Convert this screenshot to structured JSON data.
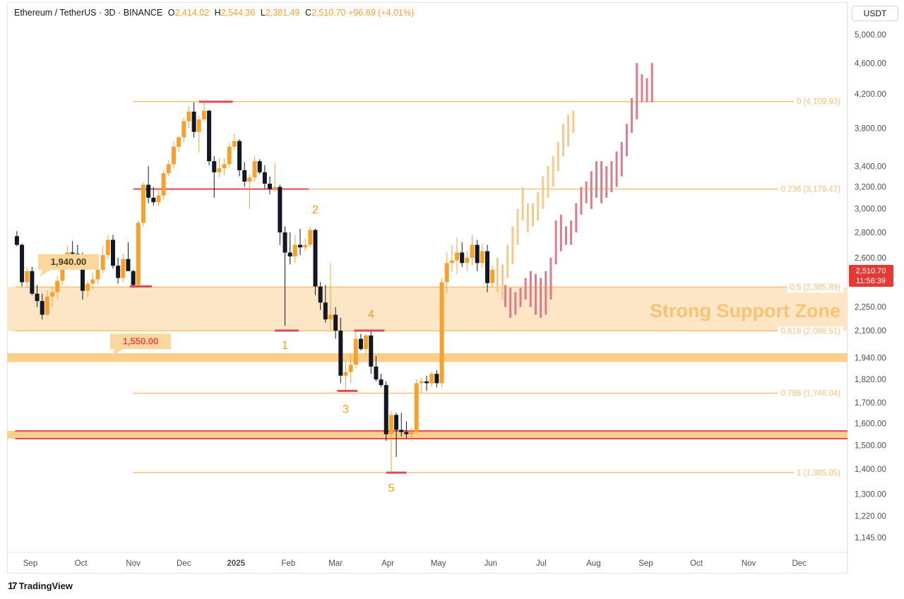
{
  "header": {
    "title": "Ethereum / TetherUS · 3D · BINANCE",
    "open_label": "O",
    "open": "2,414.02",
    "high_label": "H",
    "high": "2,544.36",
    "low_label": "L",
    "low": "2,381.49",
    "close_label": "C",
    "close": "2,510.70",
    "change": "+96.69 (+4.01%)",
    "currency": "USDT"
  },
  "price_tag": {
    "price": "2,510.70",
    "countdown": "11:56:39"
  },
  "brand": {
    "logo": "17",
    "name": "TradingView"
  },
  "annotations": {
    "zone_label": "Strong Support Zone",
    "level_1940": "1,940.00",
    "level_1550": "1,550.00",
    "waves": [
      "1",
      "2",
      "3",
      "4",
      "5"
    ]
  },
  "colors": {
    "up": "#f7a12d",
    "down": "#131722",
    "fib": "#f6c177",
    "zone_fill": "#fde6c6",
    "band_fill": "#fbcf8a",
    "red_line": "#e0495a",
    "proj_orange": "#f7c98a",
    "proj_red": "#dc7b8a",
    "price_tag_bg": "#e53935"
  },
  "chart_data": {
    "type": "candlestick",
    "symbol": "Ethereum / TetherUS",
    "interval": "3D",
    "exchange": "BINANCE",
    "y_axis": {
      "scale": "log",
      "range": [
        1100,
        5300
      ],
      "ticks": [
        "5,000.00",
        "4,600.00",
        "4,200.00",
        "3,800.00",
        "3,400.00",
        "3,200.00",
        "3,000.00",
        "2,800.00",
        "2,600.00",
        "2,250.00",
        "2,100.00",
        "1,940.00",
        "1,820.00",
        "1,700.00",
        "1,600.00",
        "1,500.00",
        "1,400.00",
        "1,300.00",
        "1,220.00",
        "1,145.00"
      ]
    },
    "x_axis": {
      "range": [
        "2024-08-23",
        "2025-12-31"
      ],
      "ticks": [
        {
          "date": "2024-09-01",
          "label": "Sep"
        },
        {
          "date": "2024-10-01",
          "label": "Oct"
        },
        {
          "date": "2024-11-01",
          "label": "Nov"
        },
        {
          "date": "2024-12-01",
          "label": "Dec"
        },
        {
          "date": "2025-01-01",
          "label": "2025"
        },
        {
          "date": "2025-02-01",
          "label": "Feb"
        },
        {
          "date": "2025-03-01",
          "label": "Mar"
        },
        {
          "date": "2025-04-01",
          "label": "Apr"
        },
        {
          "date": "2025-05-01",
          "label": "May"
        },
        {
          "date": "2025-06-01",
          "label": "Jun"
        },
        {
          "date": "2025-07-01",
          "label": "Jul"
        },
        {
          "date": "2025-08-01",
          "label": "Aug"
        },
        {
          "date": "2025-09-01",
          "label": "Sep"
        },
        {
          "date": "2025-10-01",
          "label": "Oct"
        },
        {
          "date": "2025-11-01",
          "label": "Nov"
        },
        {
          "date": "2025-12-01",
          "label": "Dec"
        }
      ]
    },
    "fib_levels": [
      {
        "ratio": "0",
        "value": 4109.93,
        "label": "0 (4,109.93)"
      },
      {
        "ratio": "0.236",
        "value": 3179.47,
        "label": "0.236 (3,179.47)"
      },
      {
        "ratio": "0.5",
        "value": 2385.89,
        "label": "0.5 (2,385.89)"
      },
      {
        "ratio": "0.618",
        "value": 2098.51,
        "label": "0.618 (2,098.51)"
      },
      {
        "ratio": "0.786",
        "value": 1748.04,
        "label": "0.786 (1,748.04)"
      },
      {
        "ratio": "1",
        "value": 1385.05,
        "label": "1 (1,385.05)"
      }
    ],
    "support_zone": [
      2098.51,
      2385.89
    ],
    "bands": [
      [
        1915,
        1965
      ],
      [
        1530,
        1565
      ]
    ],
    "candles": [
      [
        "2024-08-24",
        2770,
        2810,
        2690,
        2700
      ],
      [
        "2024-08-27",
        2700,
        2710,
        2390,
        2420
      ],
      [
        "2024-08-30",
        2420,
        2530,
        2380,
        2500
      ],
      [
        "2024-09-02",
        2500,
        2530,
        2330,
        2340
      ],
      [
        "2024-09-05",
        2340,
        2400,
        2250,
        2290
      ],
      [
        "2024-09-08",
        2290,
        2340,
        2170,
        2200
      ],
      [
        "2024-09-11",
        2200,
        2360,
        2190,
        2320
      ],
      [
        "2024-09-14",
        2320,
        2390,
        2250,
        2350
      ],
      [
        "2024-09-17",
        2350,
        2460,
        2300,
        2430
      ],
      [
        "2024-09-20",
        2430,
        2620,
        2400,
        2570
      ],
      [
        "2024-09-23",
        2570,
        2690,
        2530,
        2640
      ],
      [
        "2024-09-26",
        2640,
        2730,
        2580,
        2630
      ],
      [
        "2024-09-29",
        2630,
        2700,
        2560,
        2590
      ],
      [
        "2024-10-02",
        2590,
        2640,
        2300,
        2360
      ],
      [
        "2024-10-05",
        2360,
        2430,
        2320,
        2410
      ],
      [
        "2024-10-08",
        2410,
        2490,
        2370,
        2440
      ],
      [
        "2024-10-11",
        2440,
        2540,
        2410,
        2510
      ],
      [
        "2024-10-14",
        2510,
        2690,
        2480,
        2620
      ],
      [
        "2024-10-17",
        2620,
        2780,
        2590,
        2740
      ],
      [
        "2024-10-20",
        2740,
        2780,
        2520,
        2540
      ],
      [
        "2024-10-23",
        2540,
        2600,
        2410,
        2450
      ],
      [
        "2024-10-26",
        2450,
        2630,
        2420,
        2590
      ],
      [
        "2024-10-29",
        2590,
        2720,
        2500,
        2500
      ],
      [
        "2024-11-01",
        2500,
        2510,
        2380,
        2400
      ],
      [
        "2024-11-04",
        2400,
        2900,
        2380,
        2880
      ],
      [
        "2024-11-07",
        2880,
        3240,
        2850,
        3220
      ],
      [
        "2024-11-10",
        3220,
        3400,
        3050,
        3100
      ],
      [
        "2024-11-13",
        3100,
        3200,
        3030,
        3060
      ],
      [
        "2024-11-16",
        3060,
        3180,
        3020,
        3120
      ],
      [
        "2024-11-19",
        3120,
        3360,
        3080,
        3330
      ],
      [
        "2024-11-22",
        3330,
        3460,
        3300,
        3420
      ],
      [
        "2024-11-25",
        3420,
        3660,
        3380,
        3600
      ],
      [
        "2024-11-28",
        3600,
        3720,
        3550,
        3700
      ],
      [
        "2024-12-01",
        3700,
        3920,
        3650,
        3880
      ],
      [
        "2024-12-04",
        3880,
        4050,
        3800,
        3990
      ],
      [
        "2024-12-07",
        3990,
        4100,
        3700,
        3760
      ],
      [
        "2024-12-10",
        3760,
        3940,
        3540,
        3900
      ],
      [
        "2024-12-13",
        3900,
        4107,
        3880,
        4000
      ],
      [
        "2024-12-16",
        4000,
        4010,
        3410,
        3450
      ],
      [
        "2024-12-19",
        3450,
        3500,
        3100,
        3340
      ],
      [
        "2024-12-22",
        3340,
        3480,
        3290,
        3380
      ],
      [
        "2024-12-25",
        3380,
        3480,
        3310,
        3420
      ],
      [
        "2024-12-28",
        3420,
        3640,
        3390,
        3600
      ],
      [
        "2024-12-31",
        3600,
        3740,
        3560,
        3660
      ],
      [
        "2025-01-03",
        3660,
        3680,
        3300,
        3360
      ],
      [
        "2025-01-06",
        3360,
        3440,
        3200,
        3250
      ],
      [
        "2025-01-09",
        3250,
        3320,
        3000,
        3290
      ],
      [
        "2025-01-12",
        3290,
        3500,
        3250,
        3450
      ],
      [
        "2025-01-15",
        3450,
        3470,
        3320,
        3340
      ],
      [
        "2025-01-18",
        3340,
        3410,
        3180,
        3230
      ],
      [
        "2025-01-21",
        3230,
        3300,
        3130,
        3180
      ],
      [
        "2025-01-24",
        3180,
        3430,
        3150,
        3200
      ],
      [
        "2025-01-27",
        3200,
        3220,
        2700,
        2800
      ],
      [
        "2025-01-30",
        2800,
        2850,
        2130,
        2640
      ],
      [
        "2025-02-02",
        2640,
        2800,
        2550,
        2610
      ],
      [
        "2025-02-05",
        2610,
        2780,
        2560,
        2700
      ],
      [
        "2025-02-08",
        2700,
        2830,
        2620,
        2680
      ],
      [
        "2025-02-11",
        2680,
        2750,
        2650,
        2700
      ],
      [
        "2025-02-14",
        2700,
        2850,
        2680,
        2820
      ],
      [
        "2025-02-17",
        2820,
        2830,
        2330,
        2390
      ],
      [
        "2025-02-20",
        2390,
        2420,
        2230,
        2280
      ],
      [
        "2025-02-23",
        2280,
        2400,
        2150,
        2170
      ],
      [
        "2025-02-26",
        2170,
        2560,
        2100,
        2200
      ],
      [
        "2025-03-01",
        2200,
        2250,
        2050,
        2100
      ],
      [
        "2025-03-04",
        2100,
        2180,
        1800,
        1840
      ],
      [
        "2025-03-07",
        1840,
        1920,
        1760,
        1860
      ],
      [
        "2025-03-10",
        1860,
        1960,
        1800,
        1900
      ],
      [
        "2025-03-13",
        1900,
        2100,
        1880,
        2050
      ],
      [
        "2025-03-16",
        2050,
        2080,
        1980,
        1990
      ],
      [
        "2025-03-19",
        1990,
        2080,
        1960,
        2070
      ],
      [
        "2025-03-22",
        2070,
        2100,
        1850,
        1890
      ],
      [
        "2025-03-25",
        1890,
        1950,
        1810,
        1820
      ],
      [
        "2025-03-28",
        1820,
        1850,
        1780,
        1790
      ],
      [
        "2025-03-31",
        1790,
        1810,
        1520,
        1550
      ],
      [
        "2025-04-03",
        1550,
        1660,
        1385,
        1640
      ],
      [
        "2025-04-06",
        1640,
        1650,
        1450,
        1570
      ],
      [
        "2025-04-09",
        1570,
        1650,
        1540,
        1560
      ],
      [
        "2025-04-12",
        1560,
        1610,
        1530,
        1550
      ],
      [
        "2025-04-15",
        1550,
        1580,
        1520,
        1560
      ],
      [
        "2025-04-18",
        1560,
        1820,
        1550,
        1800
      ],
      [
        "2025-04-21",
        1800,
        1830,
        1750,
        1810
      ],
      [
        "2025-04-24",
        1810,
        1840,
        1760,
        1800
      ],
      [
        "2025-04-27",
        1800,
        1860,
        1780,
        1850
      ],
      [
        "2025-04-30",
        1850,
        1870,
        1780,
        1800
      ],
      [
        "2025-05-03",
        1800,
        2450,
        1780,
        2420
      ],
      [
        "2025-05-06",
        2420,
        2640,
        2340,
        2560
      ],
      [
        "2025-05-09",
        2560,
        2700,
        2490,
        2580
      ],
      [
        "2025-05-12",
        2580,
        2760,
        2480,
        2640
      ],
      [
        "2025-05-15",
        2640,
        2720,
        2530,
        2560
      ],
      [
        "2025-05-18",
        2560,
        2650,
        2500,
        2600
      ],
      [
        "2025-05-21",
        2600,
        2780,
        2540,
        2700
      ],
      [
        "2025-05-24",
        2700,
        2740,
        2500,
        2560
      ],
      [
        "2025-05-27",
        2560,
        2710,
        2520,
        2650
      ],
      [
        "2025-05-30",
        2650,
        2700,
        2350,
        2414
      ],
      [
        "2025-06-02",
        2414,
        2544,
        2381,
        2510
      ]
    ],
    "projection_orange": [
      [
        "2025-06-05",
        2350,
        2600
      ],
      [
        "2025-06-08",
        2300,
        2550
      ],
      [
        "2025-06-11",
        2450,
        2700
      ],
      [
        "2025-06-14",
        2550,
        2850
      ],
      [
        "2025-06-17",
        2700,
        3000
      ],
      [
        "2025-06-20",
        2900,
        3200
      ],
      [
        "2025-06-23",
        2800,
        3050
      ],
      [
        "2025-06-26",
        2850,
        3050
      ],
      [
        "2025-06-29",
        2900,
        3150
      ],
      [
        "2025-07-02",
        3000,
        3300
      ],
      [
        "2025-07-05",
        3100,
        3400
      ],
      [
        "2025-07-08",
        3200,
        3500
      ],
      [
        "2025-07-11",
        3350,
        3650
      ],
      [
        "2025-07-14",
        3500,
        3850
      ],
      [
        "2025-07-17",
        3600,
        3950
      ],
      [
        "2025-07-20",
        3750,
        4000
      ]
    ],
    "projection_red": [
      [
        "2025-06-08",
        2250,
        2400
      ],
      [
        "2025-06-11",
        2180,
        2380
      ],
      [
        "2025-06-14",
        2200,
        2350
      ],
      [
        "2025-06-17",
        2250,
        2380
      ],
      [
        "2025-06-20",
        2300,
        2450
      ],
      [
        "2025-06-23",
        2250,
        2500
      ],
      [
        "2025-06-26",
        2200,
        2480
      ],
      [
        "2025-06-29",
        2180,
        2450
      ],
      [
        "2025-07-02",
        2200,
        2500
      ],
      [
        "2025-07-05",
        2300,
        2600
      ],
      [
        "2025-07-08",
        2550,
        2900
      ],
      [
        "2025-07-11",
        2650,
        2950
      ],
      [
        "2025-07-14",
        2700,
        2850
      ],
      [
        "2025-07-17",
        2700,
        2900
      ],
      [
        "2025-07-20",
        2800,
        3050
      ],
      [
        "2025-07-23",
        2950,
        3200
      ],
      [
        "2025-07-26",
        3050,
        3250
      ],
      [
        "2025-07-29",
        3000,
        3350
      ],
      [
        "2025-08-01",
        3100,
        3450
      ],
      [
        "2025-08-04",
        3050,
        3450
      ],
      [
        "2025-08-07",
        3100,
        3400
      ],
      [
        "2025-08-10",
        3150,
        3450
      ],
      [
        "2025-08-13",
        3200,
        3550
      ],
      [
        "2025-08-16",
        3300,
        3650
      ],
      [
        "2025-08-19",
        3500,
        3850
      ],
      [
        "2025-08-22",
        3750,
        4150
      ],
      [
        "2025-08-25",
        3900,
        4600
      ],
      [
        "2025-08-28",
        4100,
        4450
      ],
      [
        "2025-08-31",
        4100,
        4400
      ],
      [
        "2025-09-03",
        4100,
        4600
      ]
    ],
    "horizontal_lines": [
      {
        "value": 4109.93,
        "from": "2024-11-01",
        "to": "2025-12-26",
        "kind": "fib"
      },
      {
        "value": 3179.47,
        "from": "2024-11-01",
        "to": "2025-12-26",
        "kind": "fib"
      },
      {
        "value": 2385.89,
        "from": "2024-08-23",
        "to": "2025-12-26",
        "kind": "fib"
      },
      {
        "value": 2098.51,
        "from": "2024-08-23",
        "to": "2025-12-26",
        "kind": "fib"
      },
      {
        "value": 1748.04,
        "from": "2024-11-01",
        "to": "2025-12-26",
        "kind": "fib"
      },
      {
        "value": 1385.05,
        "from": "2024-11-01",
        "to": "2025-12-26",
        "kind": "fib"
      },
      {
        "value": 3179.47,
        "from": "2024-11-01",
        "to": "2025-02-13",
        "kind": "red"
      },
      {
        "value": 1565,
        "from": "2024-08-23",
        "to": "2025-12-31",
        "kind": "red"
      },
      {
        "value": 1530,
        "from": "2024-08-23",
        "to": "2025-12-31",
        "kind": "red"
      }
    ],
    "red_markers": [
      {
        "value": 4107,
        "from": "2024-12-10",
        "to": "2024-12-30"
      },
      {
        "value": 2390,
        "from": "2024-10-30",
        "to": "2024-11-12"
      },
      {
        "value": 2100,
        "from": "2025-01-24",
        "to": "2025-02-07"
      },
      {
        "value": 1760,
        "from": "2025-03-02",
        "to": "2025-03-14"
      },
      {
        "value": 2100,
        "from": "2025-03-12",
        "to": "2025-03-30"
      },
      {
        "value": 1385,
        "from": "2025-03-31",
        "to": "2025-04-12"
      }
    ],
    "wave_points": [
      {
        "label": "1",
        "date": "2025-01-30",
        "value": 1990
      },
      {
        "label": "2",
        "date": "2025-02-17",
        "value": 2960
      },
      {
        "label": "3",
        "date": "2025-03-07",
        "value": 1650
      },
      {
        "label": "4",
        "date": "2025-03-22",
        "value": 2180
      },
      {
        "label": "5",
        "date": "2025-04-03",
        "value": 1310
      }
    ]
  }
}
